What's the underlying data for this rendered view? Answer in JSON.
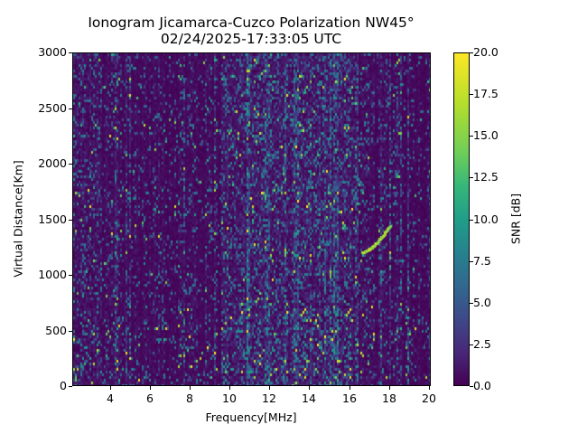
{
  "chart_data": {
    "type": "heatmap",
    "title": "Ionogram Jicamarca-Cuzco Polarization NW45°",
    "subtitle": "02/24/2025-17:33:05 UTC",
    "xlabel": "Frequency[MHz]",
    "ylabel": "Virtual Distance[Km]",
    "xlim": [
      2.1,
      20.1
    ],
    "ylim": [
      0,
      3000
    ],
    "xticks": [
      4,
      6,
      8,
      10,
      12,
      14,
      16,
      18,
      20
    ],
    "yticks": [
      0,
      500,
      1000,
      1500,
      2000,
      2500,
      3000
    ],
    "colorbar": {
      "label": "SNR [dB]",
      "range": [
        0.0,
        20.0
      ],
      "ticks": [
        "0.0",
        "2.5",
        "5.0",
        "7.5",
        "10.0",
        "12.5",
        "15.0",
        "17.5",
        "20.0"
      ],
      "colormap": "viridis"
    },
    "grid": false,
    "features": [
      {
        "name": "ionospheric-trace",
        "freq_start_mhz": 16.6,
        "dist_start_km": 1210,
        "freq_end_mhz": 18.0,
        "dist_end_km": 1450,
        "snr_db": 18
      },
      {
        "name": "stripe-band",
        "freq_mhz": 10.9,
        "snr_db": 12
      },
      {
        "name": "stripe-band",
        "freq_mhz": 11.8,
        "snr_db": 12
      },
      {
        "name": "stripe-band",
        "freq_mhz": 13.3,
        "snr_db": 12
      },
      {
        "name": "stripe-band",
        "freq_mhz": 15.3,
        "snr_db": 12
      }
    ],
    "background_snr_db": 1.5
  }
}
